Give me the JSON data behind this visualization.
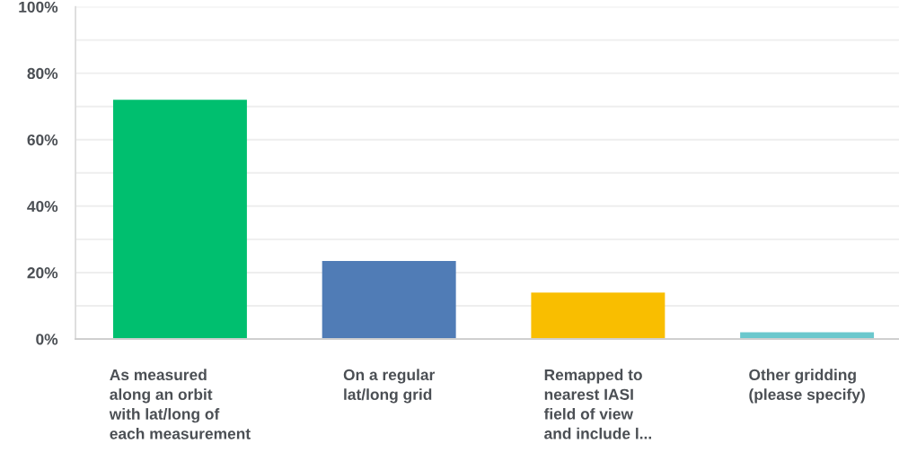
{
  "chart_data": {
    "type": "bar",
    "categories": [
      "As measured\nalong an orbit\nwith lat/long of\neach measurement",
      "On a regular\nlat/long grid",
      "Remapped to\nnearest IASI\nfield of view\nand include l...",
      "Other gridding\n(please specify)"
    ],
    "values": [
      72,
      23.5,
      14,
      2
    ],
    "colors": [
      "#00bf6f",
      "#507cb6",
      "#f9be00",
      "#6bc8cd"
    ],
    "ylim": [
      0,
      100
    ],
    "yticks": [
      {
        "value": 0,
        "label": "0%"
      },
      {
        "value": 10,
        "label": null
      },
      {
        "value": 20,
        "label": "20%"
      },
      {
        "value": 30,
        "label": null
      },
      {
        "value": 40,
        "label": "40%"
      },
      {
        "value": 50,
        "label": null
      },
      {
        "value": 60,
        "label": "60%"
      },
      {
        "value": 70,
        "label": null
      },
      {
        "value": 80,
        "label": "80%"
      },
      {
        "value": 90,
        "label": null
      },
      {
        "value": 100,
        "label": "100%"
      }
    ],
    "grid": "y"
  }
}
